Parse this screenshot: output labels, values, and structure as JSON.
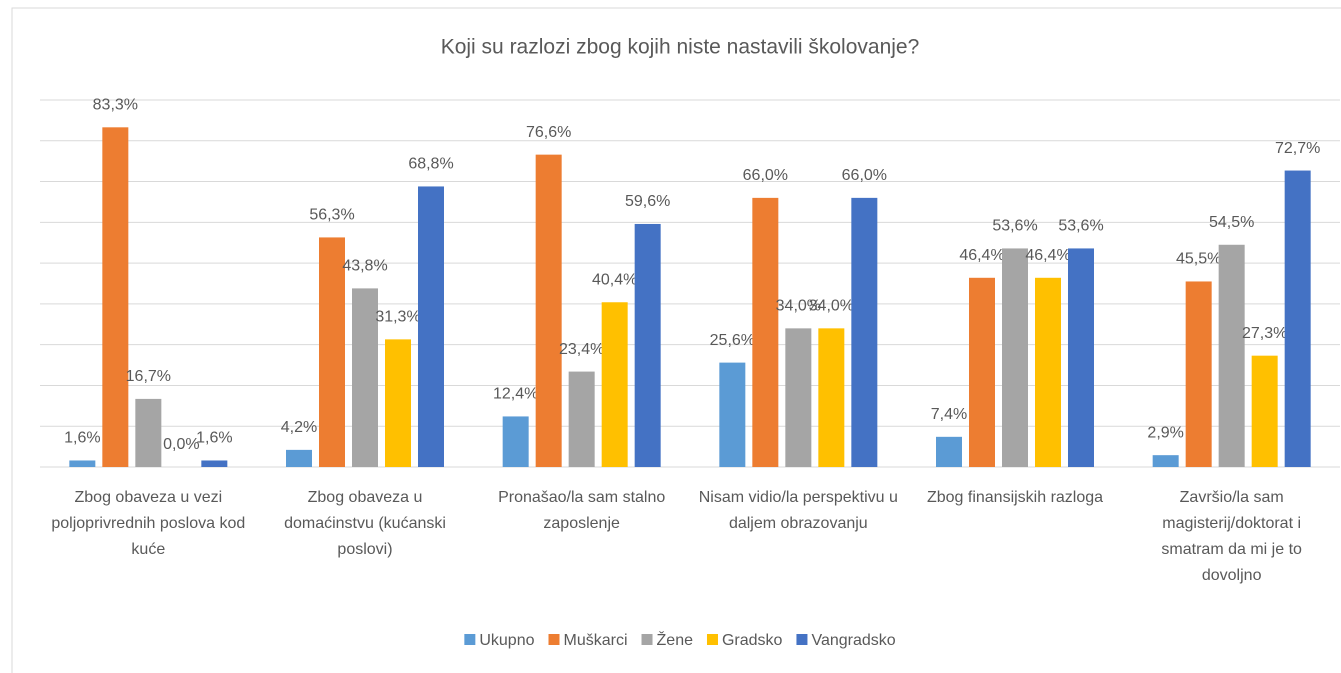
{
  "chart_data": {
    "type": "bar",
    "title": "Koji su razlozi zbog kojih niste nastavili školovanje?",
    "categories": [
      "Zbog obaveza u vezi poljoprivrednih poslova kod kuće",
      "Zbog obaveza u domaćinstvu (kućanski poslovi)",
      "Pronašao/la sam stalno zaposlenje",
      "Nisam vidio/la perspektivu u daljem obrazovanju",
      "Zbog finansijskih razloga",
      "Završio/la sam magisterij/doktorat i smatram da mi je to dovoljno"
    ],
    "series": [
      {
        "name": "Ukupno",
        "color": "#5b9bd5",
        "values": [
          1.6,
          4.2,
          12.4,
          25.6,
          7.4,
          2.9
        ],
        "value_labels": [
          "1,6%",
          "4,2%",
          "12,4%",
          "25,6%",
          "7,4%",
          "2,9%"
        ]
      },
      {
        "name": "Muškarci",
        "color": "#ed7d31",
        "values": [
          83.3,
          56.3,
          76.6,
          66.0,
          46.4,
          45.5
        ],
        "value_labels": [
          "83,3%",
          "56,3%",
          "76,6%",
          "66,0%",
          "46,4%",
          "45,5%"
        ]
      },
      {
        "name": "Žene",
        "color": "#a5a5a5",
        "values": [
          16.7,
          43.8,
          23.4,
          34.0,
          53.6,
          54.5
        ],
        "value_labels": [
          "16,7%",
          "43,8%",
          "23,4%",
          "34,0%",
          "53,6%",
          "54,5%"
        ]
      },
      {
        "name": "Gradsko",
        "color": "#ffc000",
        "values": [
          0.0,
          31.3,
          40.4,
          34.0,
          46.4,
          27.3
        ],
        "value_labels": [
          "0,0%",
          "31,3%",
          "40,4%",
          "34,0%",
          "46,4%",
          "27,3%"
        ]
      },
      {
        "name": "Vangradsko",
        "color": "#4472c4",
        "values": [
          1.6,
          68.8,
          59.6,
          66.0,
          53.6,
          72.7
        ],
        "value_labels": [
          "1,6%",
          "68,8%",
          "59,6%",
          "66,0%",
          "53,6%",
          "72,7%"
        ]
      }
    ],
    "ylim": [
      0,
      90
    ],
    "yticks": [
      0,
      10,
      20,
      30,
      40,
      50,
      60,
      70,
      80,
      90
    ],
    "grid": true,
    "legend": "bottom"
  }
}
